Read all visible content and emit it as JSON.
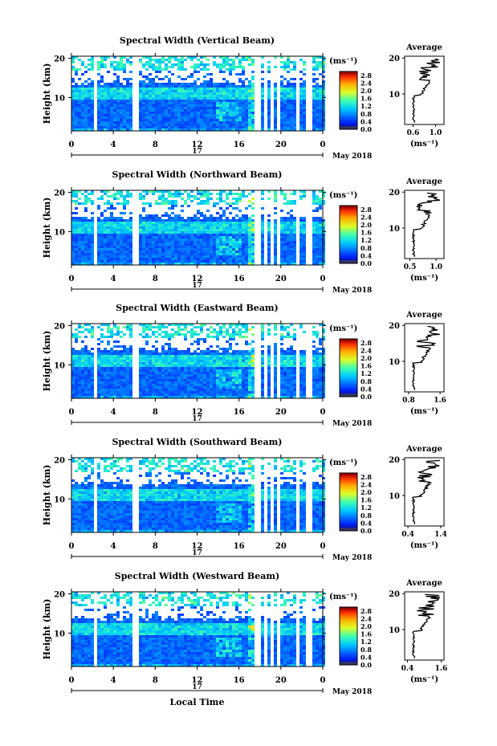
{
  "chart_data": [
    {
      "type": "heatmap",
      "title": "Spectral Width (Vertical Beam)",
      "ylabel": "Height (km)",
      "y_ticks": [
        "20",
        "10"
      ],
      "y_tick_values": [
        20,
        10
      ],
      "x_ticks": [
        "0",
        "4",
        "8",
        "12",
        "16",
        "20",
        "0"
      ],
      "x_tick_values": [
        0,
        4,
        8,
        12,
        16,
        20,
        24
      ],
      "xlim": [
        0,
        24
      ],
      "ylim": [
        1.5,
        20.5
      ],
      "date_label": "17",
      "date_suffix": "May 2018",
      "colorbar": {
        "unit": "(ms⁻¹)",
        "ticks": [
          "2.8",
          "2.4",
          "2.0",
          "1.6",
          "1.2",
          "0.8",
          "0.4",
          "0.0"
        ],
        "range": [
          0,
          3.0
        ]
      },
      "average": {
        "title": "Average",
        "xlabel": "(ms⁻¹)",
        "x_ticks": [
          "0.6",
          "1.0"
        ],
        "xlim": [
          0.45,
          1.15
        ],
        "scale": 0.7
      }
    },
    {
      "type": "heatmap",
      "title": "Spectral Width (Northward Beam)",
      "ylabel": "Height (km)",
      "y_ticks": [
        "20",
        "10"
      ],
      "y_tick_values": [
        20,
        10
      ],
      "x_ticks": [
        "0",
        "4",
        "8",
        "12",
        "16",
        "20",
        "0"
      ],
      "x_tick_values": [
        0,
        4,
        8,
        12,
        16,
        20,
        24
      ],
      "xlim": [
        0,
        24
      ],
      "ylim": [
        1.5,
        20.5
      ],
      "date_label": "17",
      "date_suffix": "May 2018",
      "colorbar": {
        "unit": "(ms⁻¹)",
        "ticks": [
          "2.8",
          "2.4",
          "2.0",
          "1.6",
          "1.2",
          "0.8",
          "0.4",
          "0.0"
        ],
        "range": [
          0,
          3.0
        ]
      },
      "average": {
        "title": "Average",
        "xlabel": "(ms⁻¹)",
        "x_ticks": [
          "0.5",
          "1.0"
        ],
        "xlim": [
          0.4,
          1.15
        ],
        "scale": 0.85
      }
    },
    {
      "type": "heatmap",
      "title": "Spectral Width (Eastward Beam)",
      "ylabel": "Height (km)",
      "y_ticks": [
        "20",
        "10"
      ],
      "y_tick_values": [
        20,
        10
      ],
      "x_ticks": [
        "0",
        "4",
        "8",
        "12",
        "16",
        "20",
        "0"
      ],
      "x_tick_values": [
        0,
        4,
        8,
        12,
        16,
        20,
        24
      ],
      "xlim": [
        0,
        24
      ],
      "ylim": [
        1.5,
        20.5
      ],
      "date_label": "17",
      "date_suffix": "May 2018",
      "colorbar": {
        "unit": "(ms⁻¹)",
        "ticks": [
          "2.8",
          "2.4",
          "2.0",
          "1.6",
          "1.2",
          "0.8",
          "0.4",
          "0.0"
        ],
        "range": [
          0,
          3.0
        ]
      },
      "average": {
        "title": "Average",
        "xlabel": "(ms⁻¹)",
        "x_ticks": [
          "0.8",
          "1.6"
        ],
        "xlim": [
          0.7,
          1.7
        ],
        "scale": 0.9
      }
    },
    {
      "type": "heatmap",
      "title": "Spectral Width (Southward Beam)",
      "ylabel": "Height (km)",
      "y_ticks": [
        "20",
        "10"
      ],
      "y_tick_values": [
        20,
        10
      ],
      "x_ticks": [
        "0",
        "4",
        "8",
        "12",
        "16",
        "20",
        "0"
      ],
      "x_tick_values": [
        0,
        4,
        8,
        12,
        16,
        20,
        24
      ],
      "xlim": [
        0,
        24
      ],
      "ylim": [
        1.5,
        20.5
      ],
      "date_label": "17",
      "date_suffix": "May 2018",
      "colorbar": {
        "unit": "(ms⁻¹)",
        "ticks": [
          "2.8",
          "2.4",
          "2.0",
          "1.6",
          "1.2",
          "0.8",
          "0.4",
          "0.0"
        ],
        "range": [
          0,
          3.0
        ]
      },
      "average": {
        "title": "Average",
        "xlabel": "(ms⁻¹)",
        "x_ticks": [
          "0.4",
          "1.4"
        ],
        "xlim": [
          0.3,
          1.5
        ],
        "scale": 0.8
      }
    },
    {
      "type": "heatmap",
      "title": "Spectral Width (Westward Beam)",
      "ylabel": "Height (km)",
      "y_ticks": [
        "20",
        "10"
      ],
      "y_tick_values": [
        20,
        10
      ],
      "x_ticks": [
        "0",
        "4",
        "8",
        "12",
        "16",
        "20",
        "0"
      ],
      "x_tick_values": [
        0,
        4,
        8,
        12,
        16,
        20,
        24
      ],
      "xlim": [
        0,
        24
      ],
      "ylim": [
        1.5,
        20.5
      ],
      "date_label": "17",
      "date_suffix": "May 2018",
      "xlabel": "Local Time",
      "colorbar": {
        "unit": "(ms⁻¹)",
        "ticks": [
          "2.8",
          "2.4",
          "2.0",
          "1.6",
          "1.2",
          "0.8",
          "0.4",
          "0.0"
        ],
        "range": [
          0,
          3.0
        ]
      },
      "average": {
        "title": "Average",
        "xlabel": "(ms⁻¹)",
        "x_ticks": [
          "0.4",
          "1.6"
        ],
        "xlim": [
          0.3,
          1.7
        ],
        "scale": 0.85
      }
    }
  ],
  "data_gaps_hours": [
    2.2,
    5.8,
    6.2,
    17.6,
    18.4,
    19.0,
    19.6,
    21.4,
    22.6
  ],
  "colors": {
    "background": "#ffffff",
    "gap": "#ffffff",
    "axis": "#000000",
    "low_end": "#333366"
  }
}
